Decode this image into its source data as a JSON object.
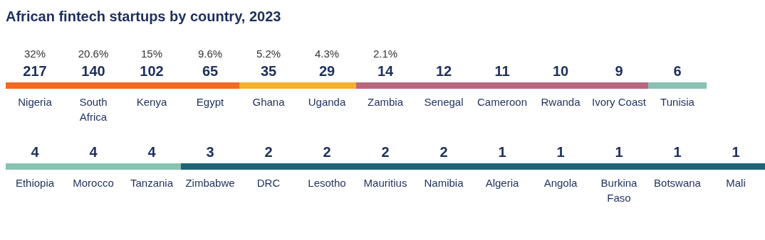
{
  "chart_data": {
    "type": "other",
    "title": "African fintech startups by country, 2023",
    "categories": [
      "Nigeria",
      "South Africa",
      "Kenya",
      "Egypt",
      "Ghana",
      "Uganda",
      "Zambia",
      "Senegal",
      "Cameroon",
      "Rwanda",
      "Ivory Coast",
      "Tunisia",
      "Ethiopia",
      "Morocco",
      "Tanzania",
      "Zimbabwe",
      "DRC",
      "Lesotho",
      "Mauritius",
      "Namibia",
      "Algeria",
      "Angola",
      "Burkina Faso",
      "Botswana",
      "Mali"
    ],
    "values": [
      217,
      140,
      102,
      65,
      35,
      29,
      14,
      12,
      11,
      10,
      9,
      6,
      4,
      4,
      4,
      3,
      2,
      2,
      2,
      2,
      1,
      1,
      1,
      1,
      1
    ],
    "data_labels": true,
    "annotations": [
      {
        "text": "32%",
        "x": "Nigeria"
      },
      {
        "text": "20.6%",
        "x": "South Africa"
      },
      {
        "text": "15%",
        "x": "Kenya"
      },
      {
        "text": "9.6%",
        "x": "Egypt"
      },
      {
        "text": "5.2%",
        "x": "Ghana"
      },
      {
        "text": "4.3%",
        "x": "Uganda"
      },
      {
        "text": "2.1%",
        "x": "Zambia"
      }
    ],
    "colors": [
      "#f26a21",
      "#f26a21",
      "#f26a21",
      "#f26a21",
      "#f5b12a",
      "#f5b12a",
      "#b9687e",
      "#b9687e",
      "#b9687e",
      "#b9687e",
      "#b9687e",
      "#88c2b2",
      "#88c2b2",
      "#88c2b2",
      "#88c2b2",
      "#1d6574",
      "#1d6574",
      "#1d6574",
      "#1d6574",
      "#1d6574",
      "#1d6574",
      "#1d6574",
      "#1d6574",
      "#1d6574",
      "#1d6574"
    ]
  }
}
